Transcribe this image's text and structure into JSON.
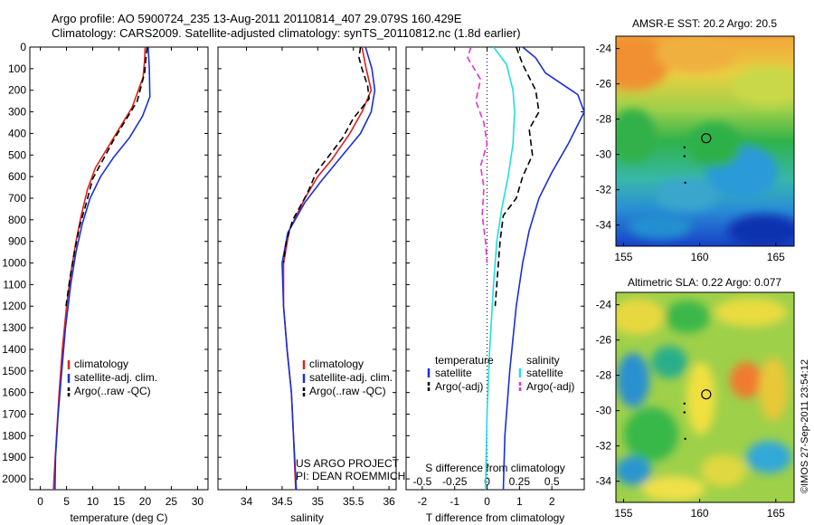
{
  "header": {
    "line1": "Argo profile: AO 5900724_235 13-Aug-2011 20110814_407 29.079S 160.429E",
    "line2": "Climatology: CARS2009. Satellite-adjusted climatology: synTS_20110812.nc (1.8d earlier)"
  },
  "credit": {
    "project": "US ARGO PROJECT",
    "pi": "PI: DEAN ROEMMICH",
    "imos": "©IMOS 27-Sep-2011 23:54:12"
  },
  "colors": {
    "red": "#e0201a",
    "blue": "#1a2fd6",
    "black": "#000000",
    "cyan": "#22dede",
    "magenta": "#e030d8"
  },
  "chart_data": [
    {
      "type": "line",
      "id": "temperature",
      "xlabel": "temperature (deg C)",
      "xlim": [
        -2,
        32
      ],
      "ylim": [
        0,
        2050
      ],
      "y_reversed": true,
      "xticks": [
        "0",
        "5",
        "10",
        "15",
        "20",
        "25",
        "30"
      ],
      "xtick_values": [
        0,
        5,
        10,
        15,
        20,
        25,
        30
      ],
      "yticks": [
        "0",
        "100",
        "200",
        "300",
        "400",
        "500",
        "600",
        "700",
        "800",
        "900",
        "1000",
        "1100",
        "1200",
        "1300",
        "1400",
        "1500",
        "1600",
        "1700",
        "1800",
        "1900",
        "2000"
      ],
      "ytick_values": [
        0,
        100,
        200,
        300,
        400,
        500,
        600,
        700,
        800,
        900,
        1000,
        1100,
        1200,
        1300,
        1400,
        1500,
        1600,
        1700,
        1800,
        1900,
        2000
      ],
      "legend": [
        "climatology",
        "satellite-adj. clim.",
        "Argo(..raw -QC)"
      ],
      "series": [
        {
          "name": "climatology",
          "color": "red",
          "dash": "",
          "points": [
            [
              20,
              0
            ],
            [
              19.9,
              60
            ],
            [
              19.6,
              140
            ],
            [
              17.5,
              280
            ],
            [
              15,
              380
            ],
            [
              12.5,
              480
            ],
            [
              10.5,
              560
            ],
            [
              9,
              660
            ],
            [
              7.8,
              780
            ],
            [
              6.8,
              900
            ],
            [
              5.8,
              1050
            ],
            [
              5,
              1200
            ],
            [
              4.2,
              1400
            ],
            [
              3.6,
              1600
            ],
            [
              3.1,
              1800
            ],
            [
              2.6,
              2000
            ],
            [
              2.5,
              2050
            ]
          ]
        },
        {
          "name": "satellite-adj. clim.",
          "color": "blue",
          "dash": "",
          "points": [
            [
              20.6,
              0
            ],
            [
              20.8,
              100
            ],
            [
              20.9,
              230
            ],
            [
              19.5,
              320
            ],
            [
              17,
              420
            ],
            [
              14,
              510
            ],
            [
              11.5,
              600
            ],
            [
              9.5,
              700
            ],
            [
              8,
              820
            ],
            [
              6.8,
              950
            ],
            [
              5.8,
              1100
            ],
            [
              4.8,
              1300
            ],
            [
              4.1,
              1500
            ],
            [
              3.4,
              1700
            ],
            [
              2.9,
              1900
            ],
            [
              2.8,
              2050
            ]
          ]
        },
        {
          "name": "Argo(..raw -QC)",
          "color": "black",
          "dash": "7,4",
          "points": [
            [
              20.4,
              0
            ],
            [
              20.1,
              60
            ],
            [
              19.9,
              120
            ],
            [
              18.5,
              250
            ],
            [
              16,
              350
            ],
            [
              14,
              430
            ],
            [
              12,
              520
            ],
            [
              10,
              610
            ],
            [
              8.8,
              720
            ],
            [
              7.5,
              830
            ],
            [
              6.5,
              950
            ],
            [
              5.6,
              1080
            ],
            [
              4.9,
              1200
            ]
          ]
        }
      ]
    },
    {
      "type": "line",
      "id": "salinity",
      "xlabel": "salinity",
      "xlim": [
        33.6,
        36.1
      ],
      "ylim": [
        0,
        2050
      ],
      "y_reversed": true,
      "xticks": [
        "34",
        "34.5",
        "35",
        "35.5",
        "36"
      ],
      "xtick_values": [
        34,
        34.5,
        35,
        35.5,
        36
      ],
      "legend": [
        "climatology",
        "satellite-adj. clim.",
        "Argo(..raw -QC)"
      ],
      "series": [
        {
          "name": "climatology",
          "color": "red",
          "dash": "",
          "points": [
            [
              35.62,
              0
            ],
            [
              35.68,
              100
            ],
            [
              35.75,
              200
            ],
            [
              35.62,
              300
            ],
            [
              35.45,
              400
            ],
            [
              35.2,
              520
            ],
            [
              35,
              600
            ],
            [
              34.82,
              700
            ],
            [
              34.6,
              850
            ],
            [
              34.52,
              1000
            ],
            [
              34.52,
              1200
            ],
            [
              34.57,
              1400
            ],
            [
              34.63,
              1600
            ],
            [
              34.66,
              1800
            ],
            [
              34.69,
              2050
            ]
          ]
        },
        {
          "name": "satellite-adj. clim.",
          "color": "blue",
          "dash": "",
          "points": [
            [
              35.67,
              0
            ],
            [
              35.76,
              100
            ],
            [
              35.8,
              200
            ],
            [
              35.75,
              300
            ],
            [
              35.6,
              400
            ],
            [
              35.3,
              520
            ],
            [
              35.05,
              620
            ],
            [
              34.82,
              720
            ],
            [
              34.58,
              860
            ],
            [
              34.5,
              1000
            ],
            [
              34.52,
              1200
            ],
            [
              34.57,
              1400
            ],
            [
              34.63,
              1600
            ],
            [
              34.66,
              1800
            ],
            [
              34.7,
              2050
            ]
          ]
        },
        {
          "name": "Argo(..raw -QC)",
          "color": "black",
          "dash": "7,4",
          "points": [
            [
              35.6,
              0
            ],
            [
              35.58,
              50
            ],
            [
              35.62,
              100
            ],
            [
              35.7,
              180
            ],
            [
              35.72,
              240
            ],
            [
              35.5,
              330
            ],
            [
              35.35,
              420
            ],
            [
              35.12,
              520
            ],
            [
              34.98,
              580
            ],
            [
              34.85,
              680
            ],
            [
              34.65,
              800
            ],
            [
              34.56,
              900
            ],
            [
              34.52,
              1000
            ]
          ]
        }
      ]
    },
    {
      "type": "line",
      "id": "differences",
      "xlabel": "T difference from climatology",
      "xlim": [
        -2.5,
        3
      ],
      "ylim": [
        0,
        2050
      ],
      "y_reversed": true,
      "xticks": [
        "-2",
        "-1",
        "0",
        "1",
        "2"
      ],
      "xtick_values": [
        -2,
        -1,
        0,
        1,
        2
      ],
      "top_axis_label": "S difference from climatology",
      "top_ticks": [
        "-0.5",
        "-0.25",
        "0",
        "0.25",
        "0.5"
      ],
      "top_tick_values": [
        -0.5,
        -0.25,
        0,
        0.25,
        0.5
      ],
      "legend_headers": [
        "temperature",
        "salinity"
      ],
      "legend": [
        "satellite",
        "Argo(-adj)",
        "satellite",
        "Argo(-adj)"
      ],
      "series": [
        {
          "name": "temperature satellite",
          "color": "blue",
          "dash": "",
          "points": [
            [
              1.1,
              0
            ],
            [
              1.5,
              50
            ],
            [
              1.8,
              120
            ],
            [
              2.8,
              220
            ],
            [
              3,
              300
            ],
            [
              2.5,
              450
            ],
            [
              2,
              580
            ],
            [
              1.6,
              700
            ],
            [
              1.3,
              850
            ],
            [
              1.1,
              1000
            ],
            [
              0.9,
              1200
            ],
            [
              0.7,
              1500
            ],
            [
              0.55,
              1800
            ],
            [
              0.5,
              2050
            ]
          ]
        },
        {
          "name": "temperature Argo(-adj)",
          "color": "black",
          "dash": "7,4",
          "points": [
            [
              0.9,
              0
            ],
            [
              1.1,
              80
            ],
            [
              1.5,
              200
            ],
            [
              1.6,
              300
            ],
            [
              1.3,
              380
            ],
            [
              1.4,
              500
            ],
            [
              1.1,
              600
            ],
            [
              0.9,
              700
            ],
            [
              0.5,
              780
            ],
            [
              0.4,
              900
            ],
            [
              0.3,
              1100
            ],
            [
              0.25,
              1200
            ]
          ]
        },
        {
          "name": "salinity satellite",
          "color": "cyan",
          "dash": "",
          "points": [
            [
              0.2,
              0
            ],
            [
              0.6,
              80
            ],
            [
              0.8,
              200
            ],
            [
              0.85,
              300
            ],
            [
              0.8,
              450
            ],
            [
              0.65,
              600
            ],
            [
              0.45,
              750
            ],
            [
              0.3,
              900
            ],
            [
              0.2,
              1100
            ],
            [
              0.08,
              1400
            ],
            [
              0,
              1700
            ],
            [
              -0.05,
              2050
            ]
          ]
        },
        {
          "name": "salinity Argo(-adj)",
          "color": "magenta",
          "dash": "7,4",
          "points": [
            [
              -0.5,
              0
            ],
            [
              -0.6,
              50
            ],
            [
              -0.2,
              150
            ],
            [
              -0.35,
              250
            ],
            [
              -0.1,
              350
            ],
            [
              0,
              450
            ],
            [
              -0.2,
              550
            ],
            [
              -0.1,
              650
            ],
            [
              -0.15,
              780
            ],
            [
              -0.05,
              900
            ],
            [
              0,
              1000
            ]
          ]
        }
      ]
    },
    {
      "type": "heatmap",
      "id": "sst_map",
      "title": "AMSR-E SST: 20.2 Argo: 20.5",
      "xlim": [
        154.5,
        166.2
      ],
      "ylim": [
        -35.2,
        -23.3
      ],
      "xticks": [
        "155",
        "160",
        "165"
      ],
      "xtick_values": [
        155,
        160,
        165
      ],
      "yticks": [
        "-24",
        "-26",
        "-28",
        "-30",
        "-32",
        "-34"
      ],
      "ytick_values": [
        -24,
        -26,
        -28,
        -30,
        -32,
        -34
      ],
      "argo_position": [
        160.429,
        -29.079
      ]
    },
    {
      "type": "heatmap",
      "id": "sla_map",
      "title": "Altimetric SLA: 0.22 Argo: 0.077",
      "xlim": [
        154.5,
        166.2
      ],
      "ylim": [
        -35.2,
        -23.3
      ],
      "xticks": [
        "155",
        "160",
        "165"
      ],
      "xtick_values": [
        155,
        160,
        165
      ],
      "yticks": [
        "-24",
        "-26",
        "-28",
        "-30",
        "-32",
        "-34"
      ],
      "ytick_values": [
        -24,
        -26,
        -28,
        -30,
        -32,
        -34
      ],
      "argo_position": [
        160.429,
        -29.079
      ]
    }
  ]
}
